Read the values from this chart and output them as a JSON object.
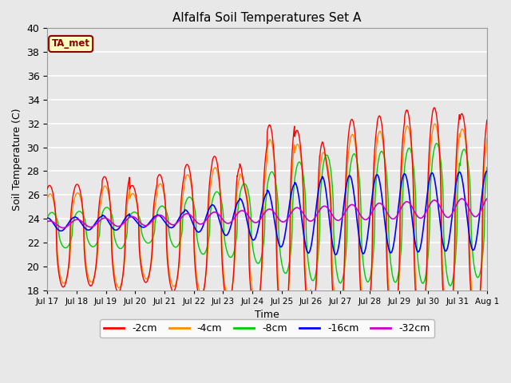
{
  "title": "Alfalfa Soil Temperatures Set A",
  "xlabel": "Time",
  "ylabel": "Soil Temperature (C)",
  "ylim": [
    18,
    40
  ],
  "xlim_start": 0,
  "xlim_end": 360,
  "annotation": "TA_met",
  "annotation_color": "#8B0000",
  "annotation_bg": "#FFFFC0",
  "bg_color": "#E8E8E8",
  "colors": {
    "-2cm": "#FF0000",
    "-4cm": "#FF8C00",
    "-8cm": "#00CC00",
    "-16cm": "#0000FF",
    "-32cm": "#CC00CC"
  },
  "legend_labels": [
    "-2cm",
    "-4cm",
    "-8cm",
    "-16cm",
    "-32cm"
  ],
  "xtick_labels": [
    "Jul 17",
    "Jul 18",
    "Jul 19",
    "Jul 20",
    "Jul 21",
    "Jul 22",
    "Jul 23",
    "Jul 24",
    "Jul 25",
    "Jul 26",
    "Jul 27",
    "Jul 28",
    "Jul 29",
    "Jul 30",
    "Jul 31",
    "Aug 1"
  ],
  "xtick_positions": [
    0,
    24,
    48,
    72,
    96,
    120,
    144,
    168,
    192,
    216,
    240,
    264,
    288,
    312,
    336,
    360
  ]
}
